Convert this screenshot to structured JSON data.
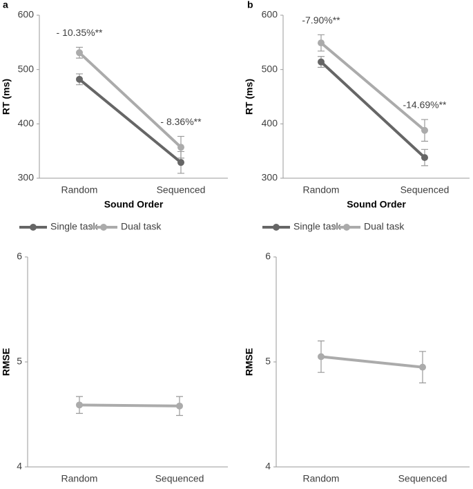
{
  "chart_data": [
    {
      "type": "line",
      "panel_label": "a",
      "ylabel": "RT (ms)",
      "xlabel": "Sound Order",
      "categories": [
        "Random",
        "Sequenced"
      ],
      "ylim": [
        300,
        600
      ],
      "yticks": [
        300,
        400,
        500,
        600
      ],
      "legend": "bottom",
      "series": [
        {
          "name": "Single task",
          "color": "#666666",
          "values": [
            482,
            329
          ],
          "errors": [
            10,
            20
          ]
        },
        {
          "name": "Dual task",
          "color": "#ababab",
          "values": [
            531,
            357
          ],
          "errors": [
            10,
            20
          ]
        }
      ],
      "annotations": [
        "- 10.35%**",
        "- 8.36%**"
      ]
    },
    {
      "type": "line",
      "panel_label": "b",
      "ylabel": "RT (ms)",
      "xlabel": "Sound Order",
      "categories": [
        "Random",
        "Sequenced"
      ],
      "ylim": [
        300,
        600
      ],
      "yticks": [
        300,
        400,
        500,
        600
      ],
      "legend": "bottom",
      "series": [
        {
          "name": "Single task",
          "color": "#666666",
          "values": [
            514,
            338
          ],
          "errors": [
            10,
            15
          ]
        },
        {
          "name": "Dual task",
          "color": "#ababab",
          "values": [
            549,
            388
          ],
          "errors": [
            15,
            20
          ]
        }
      ],
      "annotations": [
        "-7.90%**",
        "-14.69%**"
      ]
    },
    {
      "type": "line",
      "ylabel": "RMSE",
      "categories": [
        "Random",
        "Sequenced"
      ],
      "ylim": [
        4,
        6
      ],
      "yticks": [
        4,
        5,
        6
      ],
      "series": [
        {
          "color": "#ababab",
          "values": [
            4.59,
            4.58
          ],
          "errors": [
            0.08,
            0.09
          ]
        }
      ]
    },
    {
      "type": "line",
      "ylabel": "RMSE",
      "categories": [
        "Random",
        "Sequenced"
      ],
      "ylim": [
        4,
        6
      ],
      "yticks": [
        4,
        5,
        6
      ],
      "series": [
        {
          "color": "#ababab",
          "values": [
            5.05,
            4.95
          ],
          "errors": [
            0.15,
            0.15
          ]
        }
      ]
    }
  ]
}
